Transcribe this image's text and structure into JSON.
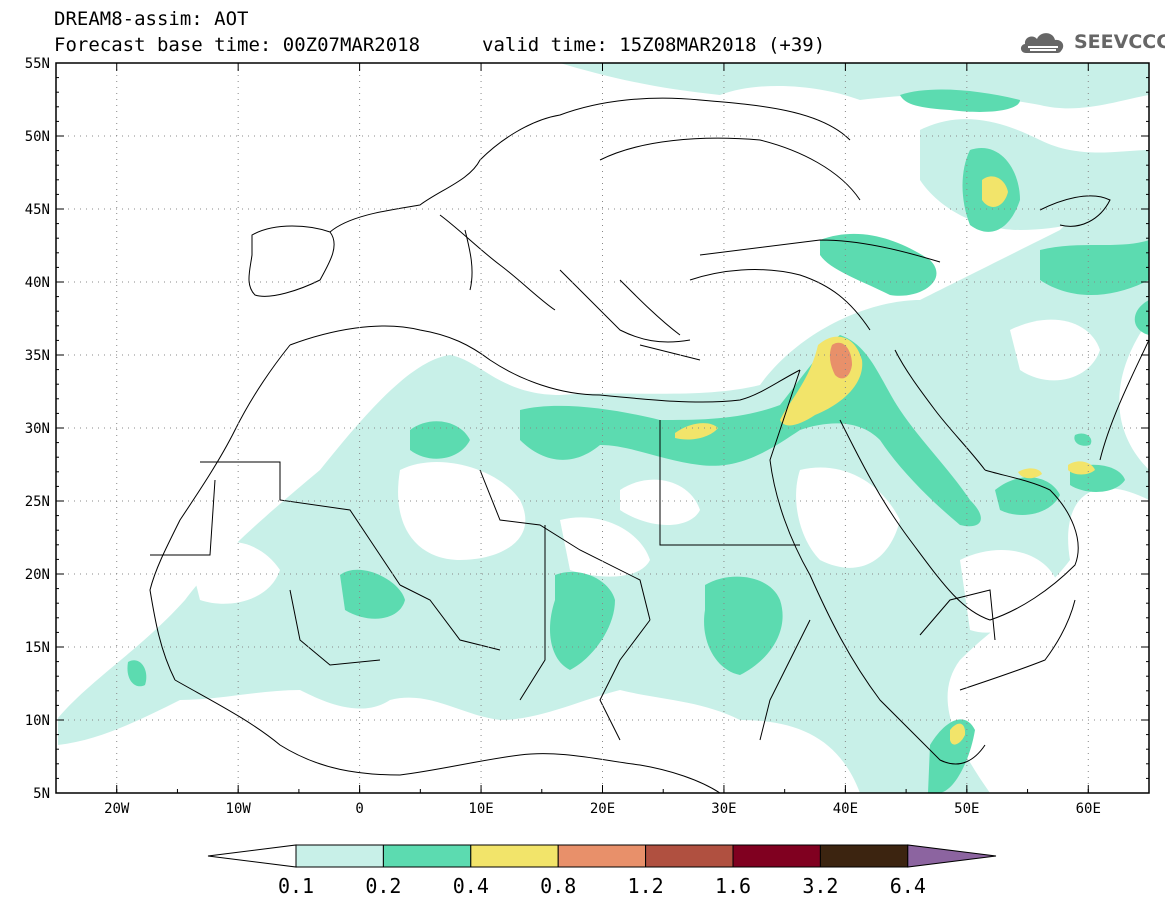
{
  "header": {
    "line1": "DREAM8-assim: AOT",
    "base_time": "Forecast base time: 00Z07MAR2018",
    "valid_time": "valid time: 15Z08MAR2018 (+39)"
  },
  "logo": {
    "text": "SEEVCCC",
    "icon": "cloud-icon"
  },
  "map": {
    "lon_range": [
      -25,
      65
    ],
    "lat_range": [
      5,
      55
    ],
    "lat_ticks": [
      "55N",
      "50N",
      "45N",
      "40N",
      "35N",
      "30N",
      "25N",
      "20N",
      "15N",
      "10N",
      "5N"
    ],
    "lon_ticks": [
      "20W",
      "10W",
      "0",
      "10E",
      "20E",
      "30E",
      "40E",
      "50E",
      "60E"
    ]
  },
  "legend": {
    "labels": [
      "0.1",
      "0.2",
      "0.4",
      "0.8",
      "1.2",
      "1.6",
      "3.2",
      "6.4"
    ],
    "colors": [
      "#ffffff",
      "#c8f0e8",
      "#5cdbb0",
      "#f2e46a",
      "#e8906a",
      "#b05040",
      "#800020",
      "#3c2410",
      "#8c64a0"
    ]
  }
}
